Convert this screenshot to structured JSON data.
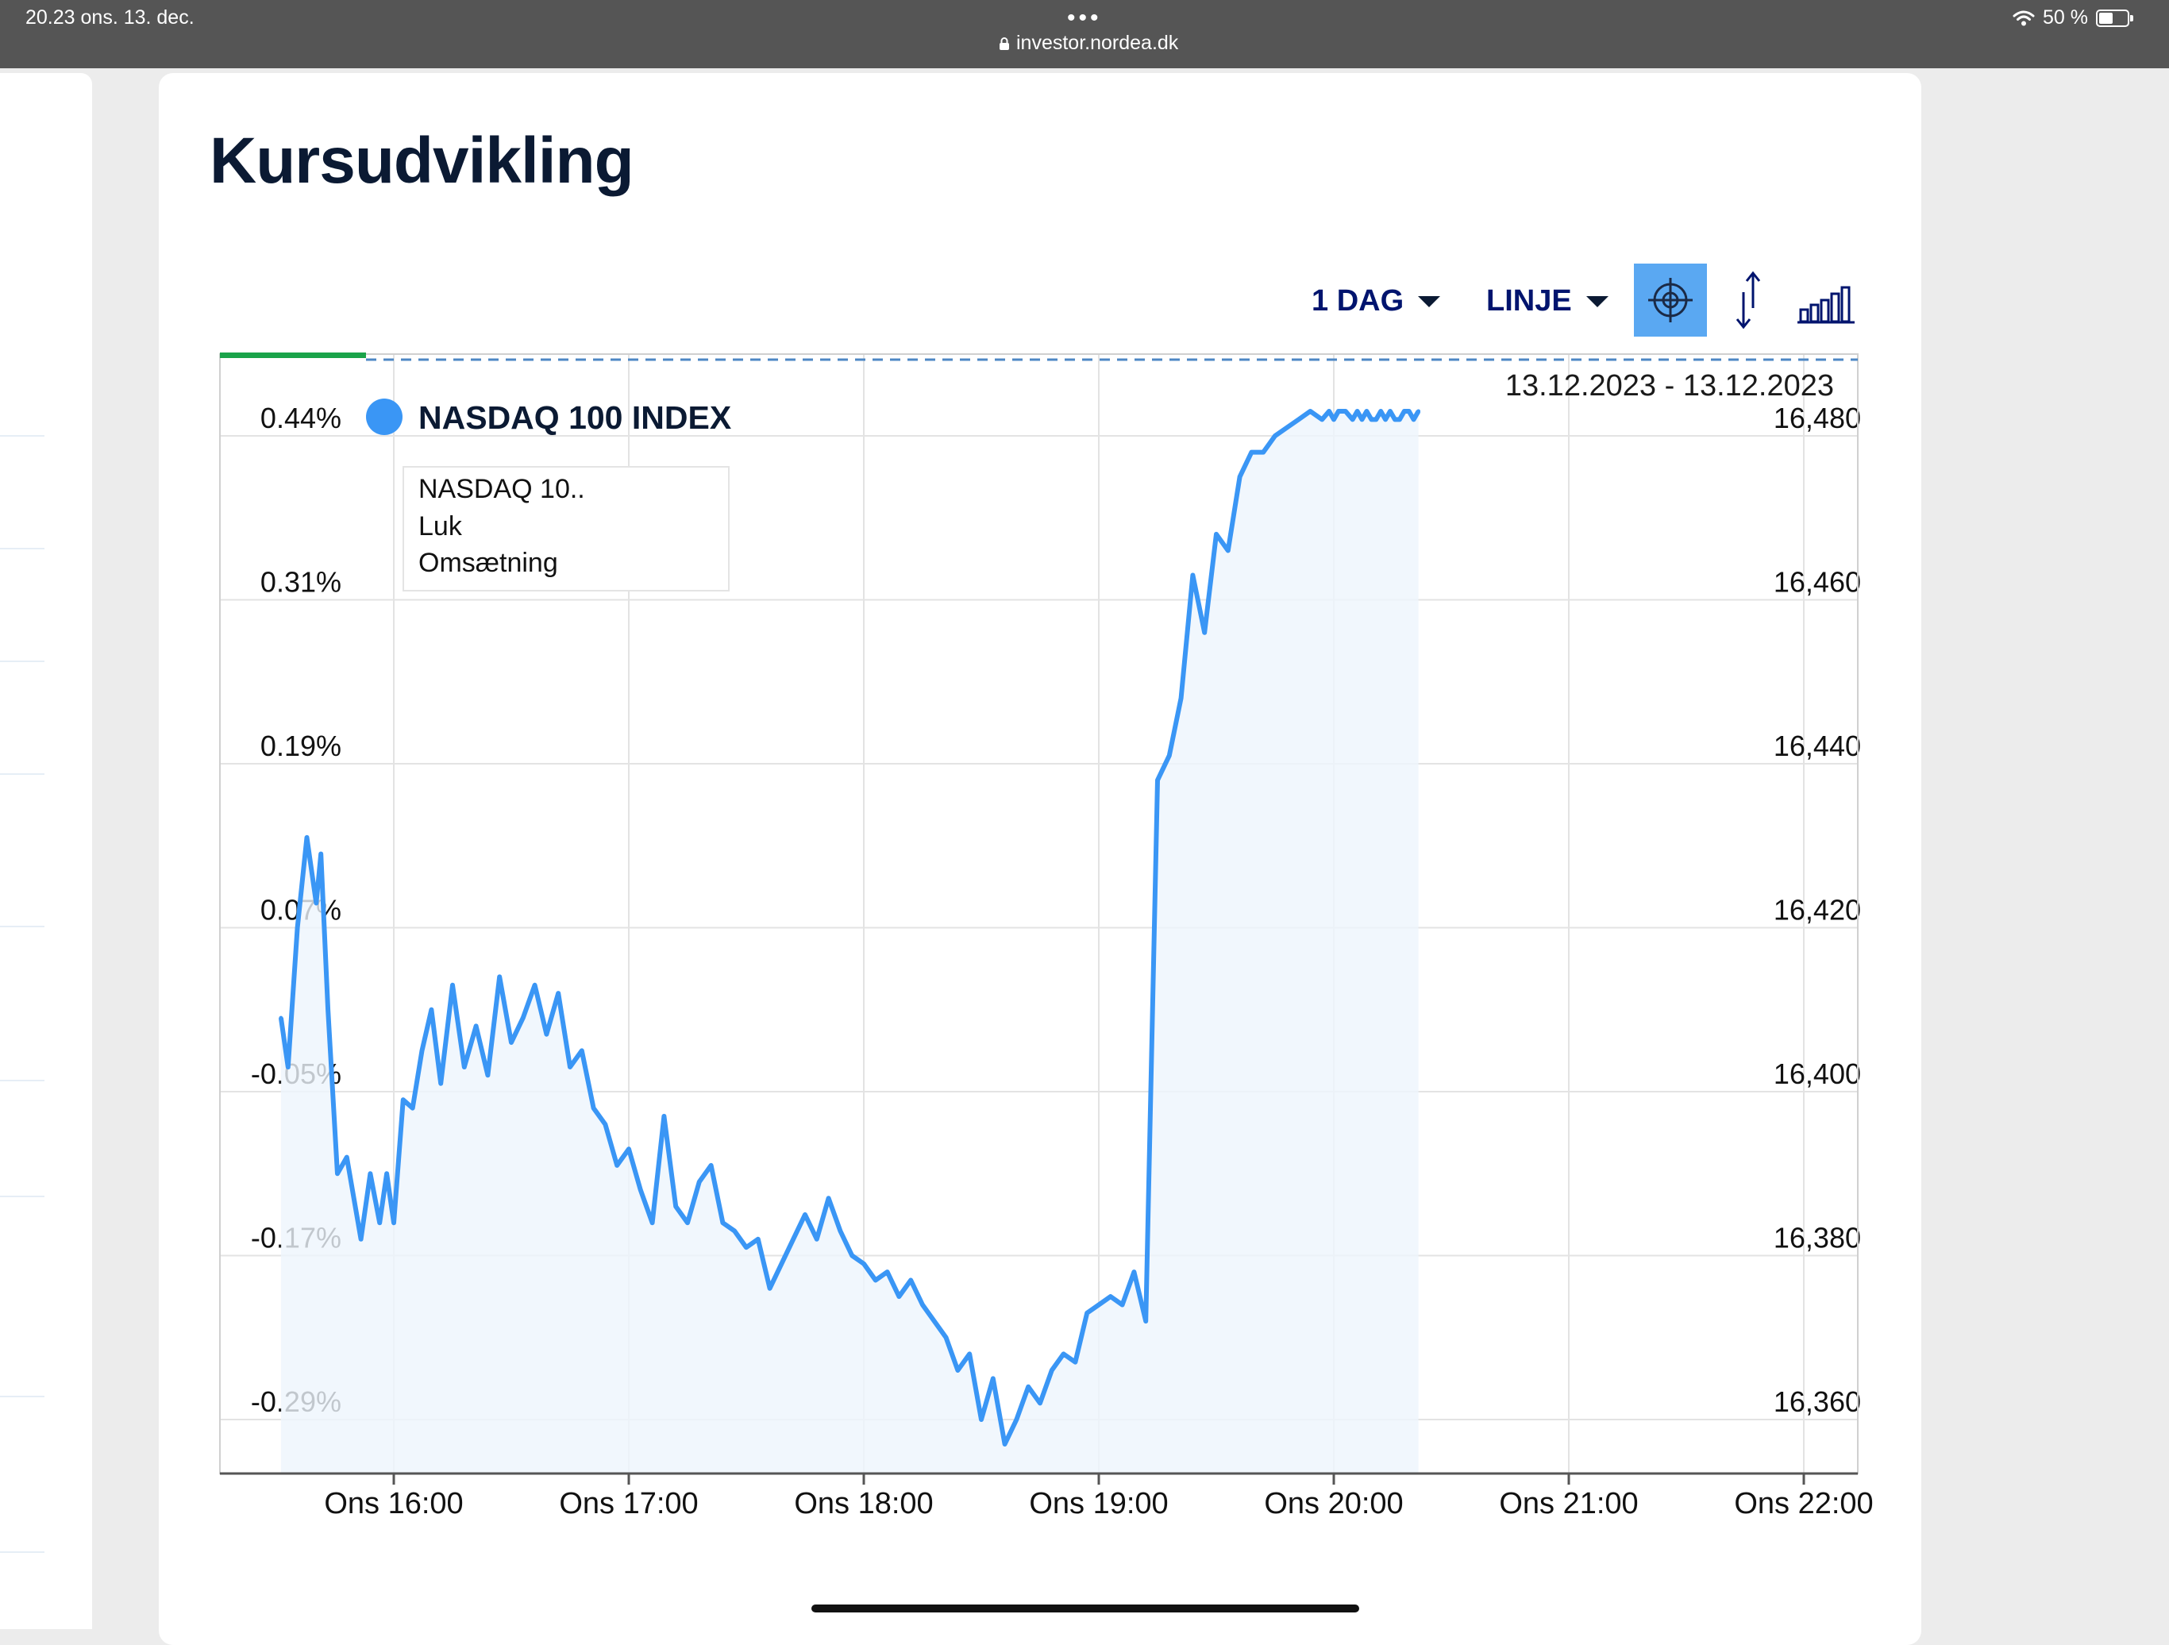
{
  "status_bar": {
    "time_date": "20.23   ons. 13. dec.",
    "dots": "•••",
    "url": "investor.nordea.dk",
    "battery": "50 %",
    "battery_fraction": 0.5
  },
  "page": {
    "title": "Kursudvikling"
  },
  "toolbar": {
    "period_label": "1 DAG",
    "chart_type_label": "LINJE",
    "icons": [
      "crosshair-icon",
      "scale-arrows-icon",
      "volume-bars-icon"
    ]
  },
  "chart": {
    "date_range": "13.12.2023 - 13.12.2023",
    "legend_label": "NASDAQ 100 INDEX",
    "tooltip_lines": [
      "NASDAQ 10..",
      "Luk",
      "Omsætning"
    ]
  },
  "colors": {
    "line": "#3a96f5",
    "grid": "#e3e3e3",
    "accent": "#1aa34a",
    "title": "#0b1a33",
    "toolbar": "#00146e",
    "active_button": "#5aa8f2"
  },
  "chart_data": {
    "type": "line",
    "series_name": "NASDAQ 100 INDEX",
    "left_axis_ticks": [
      "0.44%",
      "0.31%",
      "0.19%",
      "0.07%",
      "-0.05%",
      "-0.17%",
      "-0.29%"
    ],
    "right_axis_ticks": [
      "16,480",
      "16,460",
      "16,440",
      "16,420",
      "16,400",
      "16,380",
      "16,360"
    ],
    "x_ticks": [
      "Ons 16:00",
      "Ons 17:00",
      "Ons 18:00",
      "Ons 19:00",
      "Ons 20:00",
      "Ons 21:00",
      "Ons 22:00"
    ],
    "y_range": [
      16356,
      16484
    ],
    "x_range_hours": [
      15.52,
      22.0
    ],
    "grid": true,
    "x": [
      15.52,
      15.55,
      15.59,
      15.63,
      15.67,
      15.69,
      15.72,
      15.76,
      15.8,
      15.83,
      15.86,
      15.9,
      15.94,
      15.97,
      16.0,
      16.04,
      16.08,
      16.12,
      16.16,
      16.2,
      16.25,
      16.3,
      16.35,
      16.4,
      16.45,
      16.5,
      16.55,
      16.6,
      16.65,
      16.7,
      16.75,
      16.8,
      16.85,
      16.9,
      16.95,
      17.0,
      17.05,
      17.1,
      17.15,
      17.2,
      17.25,
      17.3,
      17.35,
      17.4,
      17.45,
      17.5,
      17.55,
      17.6,
      17.65,
      17.7,
      17.75,
      17.8,
      17.85,
      17.9,
      17.95,
      18.0,
      18.05,
      18.1,
      18.15,
      18.2,
      18.25,
      18.3,
      18.35,
      18.4,
      18.45,
      18.5,
      18.55,
      18.6,
      18.65,
      18.7,
      18.75,
      18.8,
      18.85,
      18.9,
      18.95,
      19.0,
      19.05,
      19.1,
      19.15,
      19.2,
      19.25,
      19.3,
      19.35,
      19.4,
      19.45,
      19.5,
      19.55,
      19.6,
      19.65,
      19.7,
      19.75,
      19.8,
      19.85,
      19.9,
      19.95,
      19.98,
      20.0,
      20.02,
      20.05,
      20.08,
      20.1,
      20.12,
      20.14,
      20.16,
      20.18,
      20.2,
      20.22,
      20.24,
      20.26,
      20.28,
      20.3,
      20.32,
      20.34,
      20.36
    ],
    "values": [
      16409,
      16403,
      16420,
      16431,
      16423,
      16429,
      16410,
      16390,
      16392,
      16387,
      16382,
      16390,
      16384,
      16390,
      16384,
      16399,
      16398,
      16405,
      16410,
      16401,
      16413,
      16403,
      16408,
      16402,
      16414,
      16406,
      16409,
      16413,
      16407,
      16412,
      16403,
      16405,
      16398,
      16396,
      16391,
      16393,
      16388,
      16384,
      16397,
      16386,
      16384,
      16389,
      16391,
      16384,
      16383,
      16381,
      16382,
      16376,
      16379,
      16382,
      16385,
      16382,
      16387,
      16383,
      16380,
      16379,
      16377,
      16378,
      16375,
      16377,
      16374,
      16372,
      16370,
      16366,
      16368,
      16360,
      16365,
      16357,
      16360,
      16364,
      16362,
      16366,
      16368,
      16367,
      16373,
      16374,
      16375,
      16374,
      16378,
      16372,
      16438,
      16441,
      16448,
      16463,
      16456,
      16468,
      16466,
      16475,
      16478,
      16478,
      16480,
      16481,
      16482,
      16483,
      16482,
      16483,
      16482,
      16483,
      16483,
      16482,
      16483,
      16482,
      16483,
      16482,
      16482,
      16483,
      16482,
      16483,
      16482,
      16482,
      16483,
      16483,
      16482,
      16483
    ]
  }
}
